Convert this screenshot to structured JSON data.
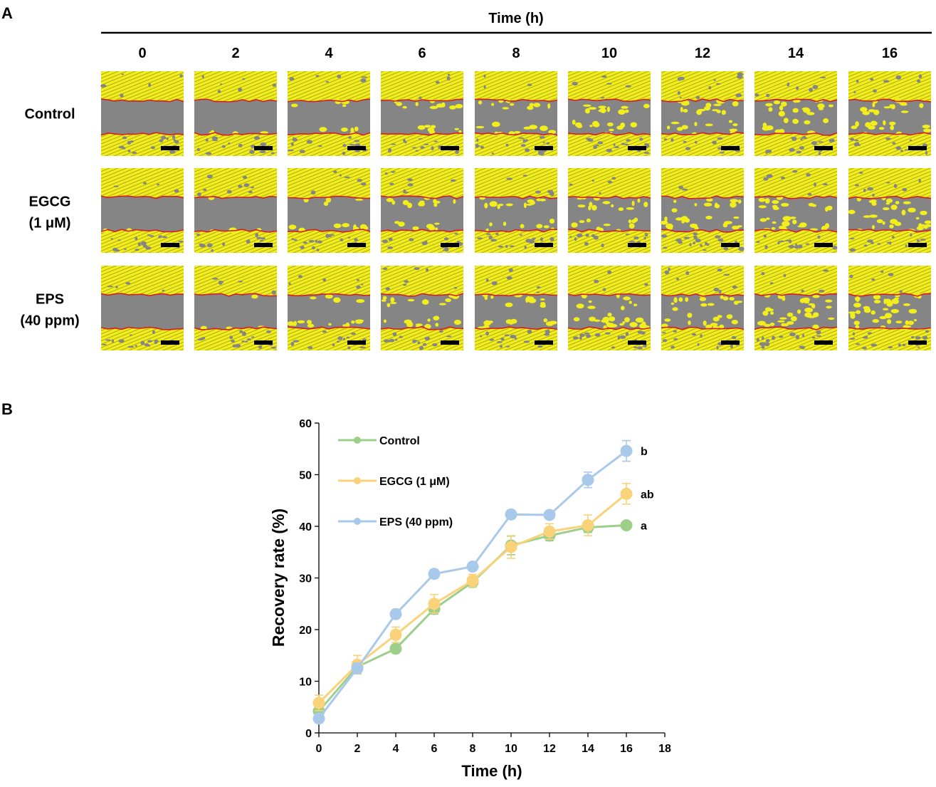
{
  "panels": {
    "a_label": "A",
    "b_label": "B"
  },
  "panel_a": {
    "header": "Time (h)",
    "time_points": [
      "0",
      "2",
      "4",
      "6",
      "8",
      "10",
      "12",
      "14",
      "16"
    ],
    "rows": [
      {
        "line1": "Control",
        "line2": "",
        "closure": [
          0.0,
          0.06,
          0.16,
          0.24,
          0.3,
          0.36,
          0.38,
          0.4,
          0.4
        ]
      },
      {
        "line1": "EGCG",
        "line2": "(1 μM)",
        "closure": [
          0.03,
          0.06,
          0.19,
          0.25,
          0.29,
          0.36,
          0.39,
          0.4,
          0.46
        ]
      },
      {
        "line1": "EPS",
        "line2": "(40 ppm)",
        "closure": [
          0.0,
          0.06,
          0.23,
          0.31,
          0.32,
          0.42,
          0.42,
          0.49,
          0.55
        ]
      }
    ],
    "colors": {
      "cells": "#f2ee1c",
      "gap": "#858585",
      "edge": "#d81e1e",
      "scale_bar": "#000000"
    }
  },
  "chart_data": {
    "type": "line",
    "title": "",
    "xlabel": "Time (h)",
    "ylabel": "Recovery rate (%)",
    "xlim": [
      0,
      18
    ],
    "ylim": [
      0,
      60
    ],
    "xticks": [
      0,
      2,
      4,
      6,
      8,
      10,
      12,
      14,
      16,
      18
    ],
    "yticks": [
      0,
      10,
      20,
      30,
      40,
      50,
      60
    ],
    "legend_position": "top-left",
    "x": [
      0,
      2,
      4,
      6,
      8,
      10,
      12,
      14,
      16
    ],
    "series": [
      {
        "name": "Control",
        "color": "#9dcf8a",
        "values": [
          4.2,
          12.8,
          16.3,
          24.0,
          29.2,
          36.3,
          38.2,
          39.8,
          40.2
        ],
        "errors": [
          1.5,
          1.0,
          0.8,
          1.0,
          1.0,
          1.8,
          1.0,
          1.0,
          0.6
        ],
        "significance": "a"
      },
      {
        "name": "EGCG (1 μM)",
        "color": "#f9d27a",
        "values": [
          5.8,
          13.2,
          19.0,
          25.0,
          29.5,
          36.0,
          39.0,
          40.2,
          46.3
        ],
        "errors": [
          1.5,
          1.8,
          1.5,
          1.8,
          1.2,
          2.2,
          1.5,
          2.0,
          2.0
        ],
        "significance": "ab"
      },
      {
        "name": "EPS (40 ppm)",
        "color": "#a9c9ea",
        "values": [
          2.8,
          12.5,
          23.0,
          30.8,
          32.2,
          42.3,
          42.2,
          49.0,
          54.6
        ],
        "errors": [
          0.8,
          1.0,
          0.8,
          0.8,
          0.8,
          0.8,
          0.8,
          1.5,
          2.0
        ],
        "significance": "b"
      }
    ]
  }
}
